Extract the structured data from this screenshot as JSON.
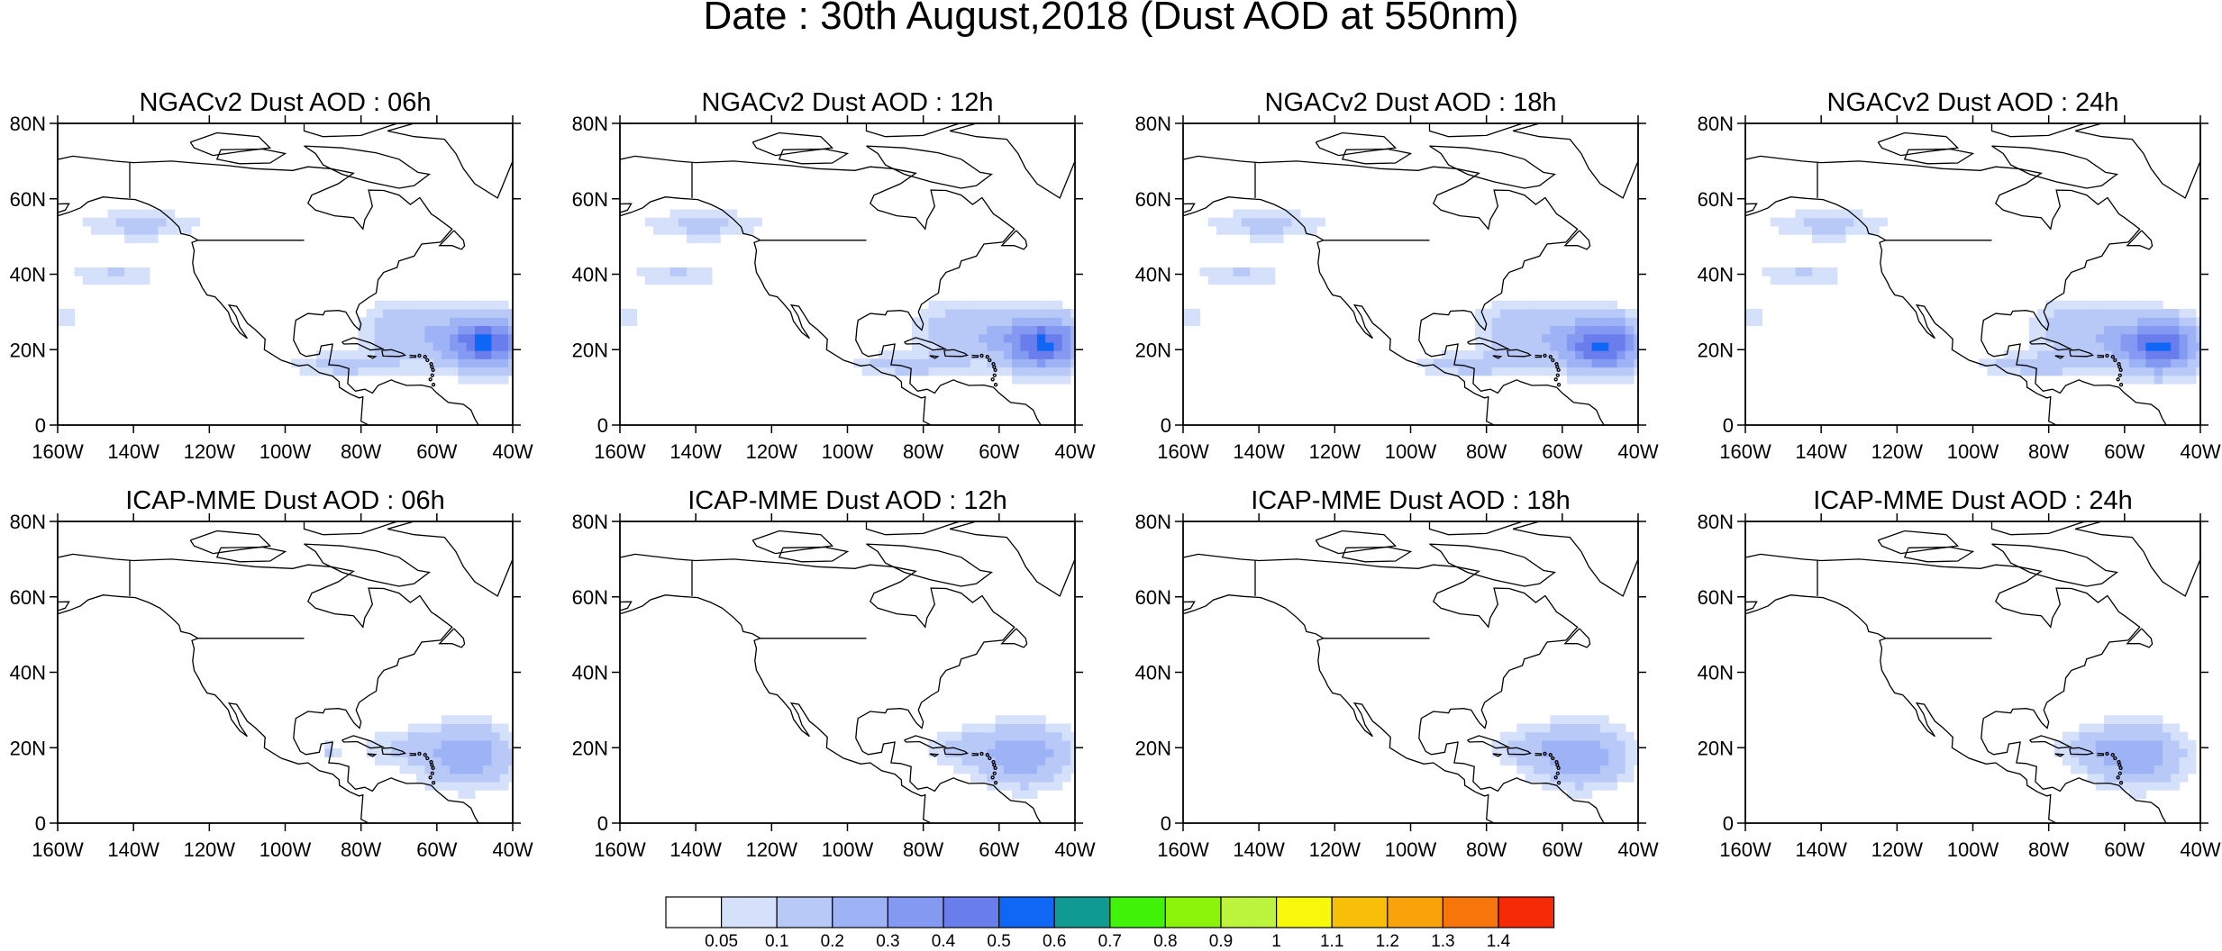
{
  "title": "Date : 30th August,2018 (Dust AOD at 550nm)",
  "panels": [
    {
      "title": "NGACv2 Dust AOD : 06h",
      "row": 0,
      "col": 0,
      "plume": "ngac",
      "shift": 0
    },
    {
      "title": "NGACv2 Dust AOD : 12h",
      "row": 0,
      "col": 1,
      "plume": "ngac",
      "shift": 1
    },
    {
      "title": "NGACv2 Dust AOD : 18h",
      "row": 0,
      "col": 2,
      "plume": "ngac",
      "shift": 2
    },
    {
      "title": "NGACv2 Dust AOD : 24h",
      "row": 0,
      "col": 3,
      "plume": "ngac",
      "shift": 3
    },
    {
      "title": "ICAP-MME Dust AOD : 06h",
      "row": 1,
      "col": 0,
      "plume": "icap",
      "shift": 0
    },
    {
      "title": "ICAP-MME Dust AOD : 12h",
      "row": 1,
      "col": 1,
      "plume": "icap",
      "shift": 1
    },
    {
      "title": "ICAP-MME Dust AOD : 18h",
      "row": 1,
      "col": 2,
      "plume": "icap",
      "shift": 2
    },
    {
      "title": "ICAP-MME Dust AOD : 24h",
      "row": 1,
      "col": 3,
      "plume": "icap",
      "shift": 3
    }
  ],
  "map": {
    "lat_ticks": [
      "80N",
      "60N",
      "40N",
      "20N",
      "0"
    ],
    "lat_values": [
      80,
      60,
      40,
      20,
      0
    ],
    "lon_ticks": [
      "160W",
      "140W",
      "120W",
      "100W",
      "80W",
      "60W",
      "40W"
    ],
    "lon_values": [
      -160,
      -140,
      -120,
      -100,
      -80,
      -60,
      -40
    ],
    "lon_range": [
      -160,
      -40
    ],
    "lat_range": [
      0,
      80
    ]
  },
  "colorbar": {
    "labels": [
      "0.05",
      "0.1",
      "0.2",
      "0.3",
      "0.4",
      "0.5",
      "0.6",
      "0.7",
      "0.8",
      "0.9",
      "1",
      "1.1",
      "1.2",
      "1.3",
      "1.4"
    ],
    "colors": [
      "#ffffff",
      "#d5e0fb",
      "#b8c9f8",
      "#9db3f5",
      "#8499f1",
      "#6a7ded",
      "#1067f5",
      "#0f9a94",
      "#40f308",
      "#8bf40a",
      "#bdf43e",
      "#f8f80a",
      "#f8bf08",
      "#f8a30a",
      "#f7760b",
      "#f72a08"
    ]
  }
}
